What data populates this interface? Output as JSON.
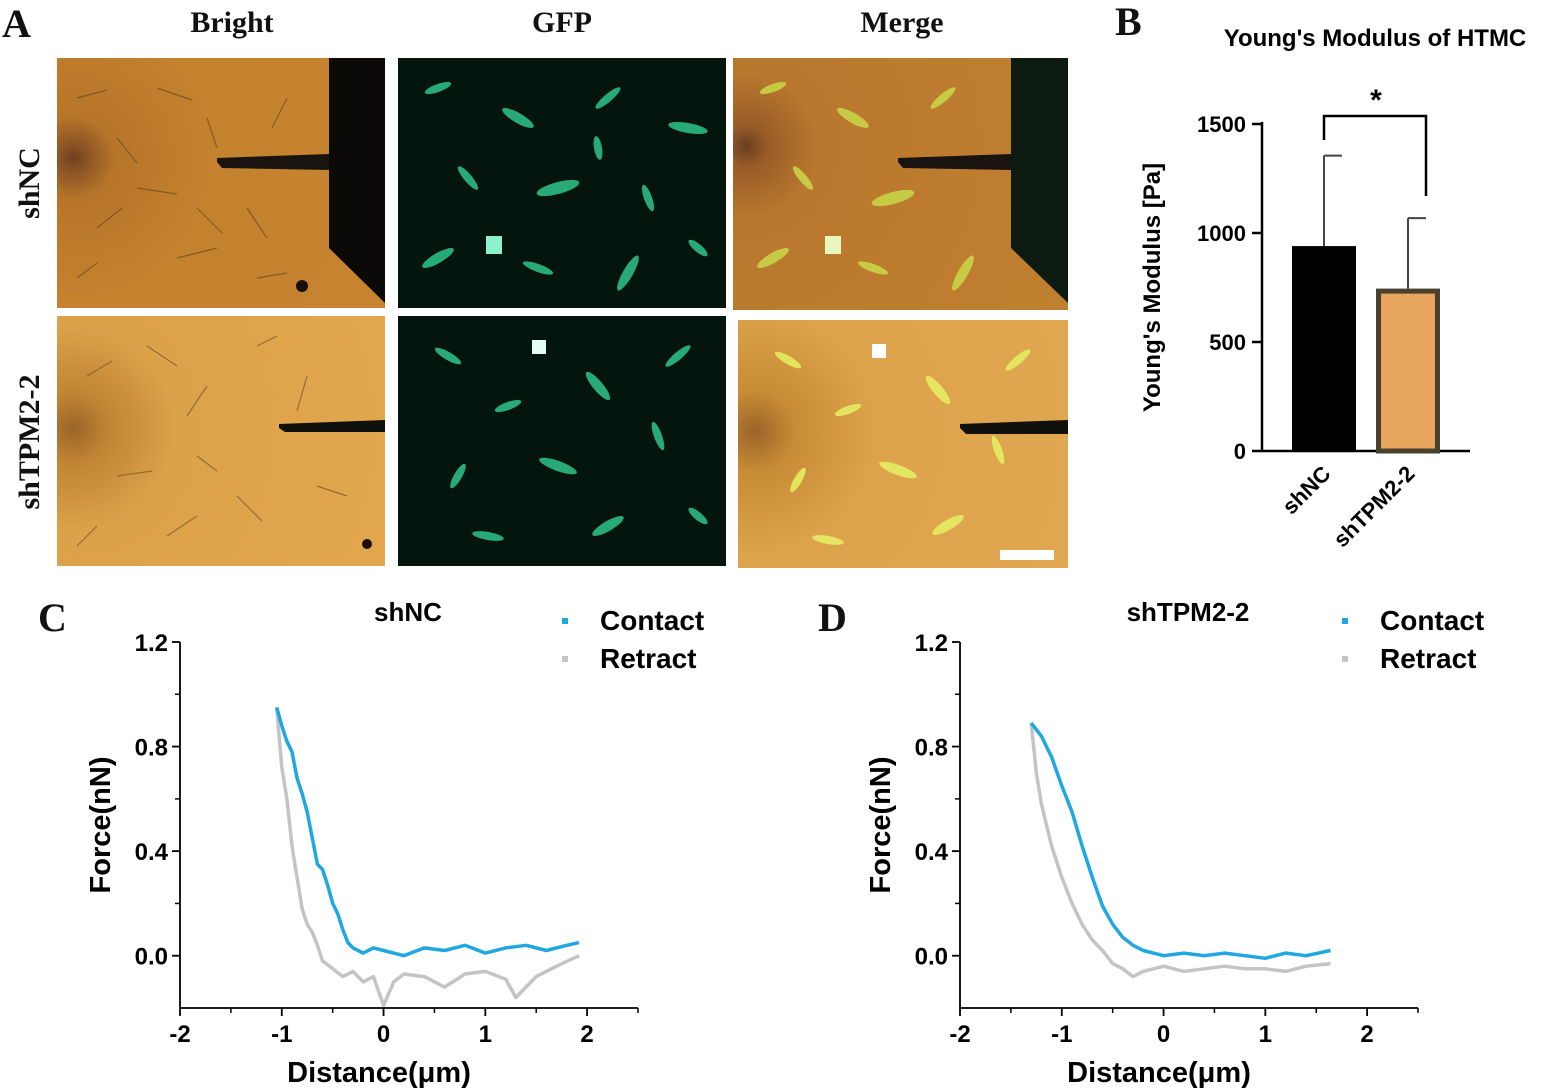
{
  "panel_labels": {
    "a": "A",
    "b": "B",
    "c": "C",
    "d": "D"
  },
  "panel_a": {
    "columns": [
      "Bright",
      "GFP",
      "Merge"
    ],
    "rows": [
      "shNC",
      "shTPM2-2"
    ]
  },
  "chart_data": [
    {
      "type": "bar",
      "panel": "B",
      "title": "Young's Modulus of HTMC",
      "ylabel": "Young's Modulus [Pa]",
      "xlabel": "",
      "categories": [
        "shNC",
        "shTPM2-2"
      ],
      "values": [
        940,
        745
      ],
      "error_upper": [
        1355,
        1068
      ],
      "ylim": [
        0,
        1500
      ],
      "yticks": [
        "0",
        "500",
        "1000",
        "1500"
      ],
      "significance": "*",
      "colors": [
        "#000000",
        "#e8a65c"
      ]
    },
    {
      "type": "line",
      "panel": "C",
      "title": "shNC",
      "xlabel": "Distance(μm)",
      "ylabel": "Force(nN)",
      "xlim": [
        -2,
        2.5
      ],
      "ylim": [
        -0.2,
        1.2
      ],
      "xticks": [
        "-2",
        "-1",
        "0",
        "1",
        "2"
      ],
      "yticks": [
        "0.0",
        "0.4",
        "0.8",
        "1.2"
      ],
      "legend": [
        "Contact",
        "Retract"
      ],
      "series": [
        {
          "name": "Contact",
          "color": "#1ea7e1",
          "x": [
            -1.05,
            -1.0,
            -0.95,
            -0.9,
            -0.85,
            -0.8,
            -0.75,
            -0.7,
            -0.65,
            -0.6,
            -0.55,
            -0.5,
            -0.45,
            -0.4,
            -0.35,
            -0.3,
            -0.2,
            -0.1,
            0.0,
            0.2,
            0.4,
            0.6,
            0.8,
            1.0,
            1.2,
            1.4,
            1.6,
            1.8,
            1.92
          ],
          "y": [
            0.95,
            0.88,
            0.82,
            0.78,
            0.68,
            0.62,
            0.55,
            0.45,
            0.35,
            0.33,
            0.27,
            0.2,
            0.16,
            0.1,
            0.05,
            0.03,
            0.01,
            0.03,
            0.02,
            0.0,
            0.03,
            0.02,
            0.04,
            0.01,
            0.03,
            0.04,
            0.02,
            0.04,
            0.05
          ]
        },
        {
          "name": "Retract",
          "color": "#c4c4c4",
          "x": [
            -1.05,
            -1.0,
            -0.95,
            -0.9,
            -0.85,
            -0.8,
            -0.75,
            -0.7,
            -0.65,
            -0.6,
            -0.5,
            -0.4,
            -0.3,
            -0.2,
            -0.1,
            0.0,
            0.1,
            0.2,
            0.4,
            0.6,
            0.8,
            1.0,
            1.2,
            1.3,
            1.5,
            1.7,
            1.92
          ],
          "y": [
            0.95,
            0.72,
            0.6,
            0.42,
            0.3,
            0.18,
            0.12,
            0.09,
            0.04,
            -0.02,
            -0.05,
            -0.08,
            -0.06,
            -0.1,
            -0.08,
            -0.19,
            -0.1,
            -0.07,
            -0.08,
            -0.12,
            -0.07,
            -0.06,
            -0.09,
            -0.16,
            -0.08,
            -0.04,
            0.0
          ]
        }
      ]
    },
    {
      "type": "line",
      "panel": "D",
      "title": "shTPM2-2",
      "xlabel": "Distance(μm)",
      "ylabel": "Force(nN)",
      "xlim": [
        -2,
        2.5
      ],
      "ylim": [
        -0.2,
        1.2
      ],
      "xticks": [
        "-2",
        "-1",
        "0",
        "1",
        "2"
      ],
      "yticks": [
        "0.0",
        "0.4",
        "0.8",
        "1.2"
      ],
      "legend": [
        "Contact",
        "Retract"
      ],
      "series": [
        {
          "name": "Contact",
          "color": "#1ea7e1",
          "x": [
            -1.3,
            -1.2,
            -1.1,
            -1.0,
            -0.9,
            -0.8,
            -0.7,
            -0.6,
            -0.5,
            -0.4,
            -0.3,
            -0.2,
            -0.1,
            0.0,
            0.2,
            0.4,
            0.6,
            0.8,
            1.0,
            1.2,
            1.4,
            1.64
          ],
          "y": [
            0.89,
            0.84,
            0.76,
            0.65,
            0.55,
            0.42,
            0.3,
            0.19,
            0.12,
            0.07,
            0.04,
            0.02,
            0.01,
            0.0,
            0.01,
            0.0,
            0.01,
            0.0,
            -0.01,
            0.01,
            0.0,
            0.02
          ]
        },
        {
          "name": "Retract",
          "color": "#c4c4c4",
          "x": [
            -1.3,
            -1.25,
            -1.2,
            -1.1,
            -1.0,
            -0.9,
            -0.8,
            -0.7,
            -0.6,
            -0.5,
            -0.4,
            -0.3,
            -0.2,
            0.0,
            0.2,
            0.4,
            0.6,
            0.8,
            1.0,
            1.2,
            1.4,
            1.64
          ],
          "y": [
            0.89,
            0.7,
            0.58,
            0.42,
            0.3,
            0.2,
            0.12,
            0.06,
            0.02,
            -0.03,
            -0.05,
            -0.08,
            -0.06,
            -0.04,
            -0.06,
            -0.05,
            -0.04,
            -0.05,
            -0.05,
            -0.06,
            -0.04,
            -0.03
          ]
        }
      ]
    }
  ]
}
